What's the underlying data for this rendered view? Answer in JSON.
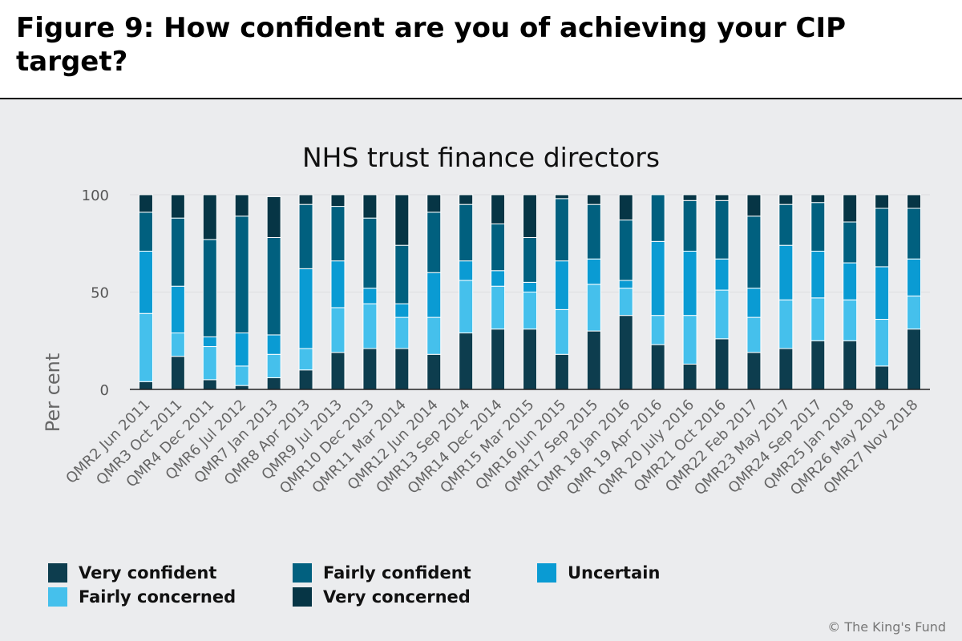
{
  "figure_title": "Figure 9: How confident are you of achieving your CIP target?",
  "credit": "© The King's Fund",
  "colors": {
    "very_confident": "#0d3d4e",
    "fairly_confident": "#01607f",
    "uncertain": "#0a9bd3",
    "fairly_concerned": "#45c0ec",
    "very_concerned": "#063545",
    "panel_bg": "#ebecee"
  },
  "chart_data": {
    "type": "bar",
    "stacked": true,
    "title": "NHS trust finance directors",
    "xlabel": "",
    "ylabel": "Per cent",
    "ylim": [
      0,
      100
    ],
    "yticks": [
      0,
      50,
      100
    ],
    "grid": true,
    "legend_position": "bottom",
    "categories": [
      "QMR2 Jun 2011",
      "QMR3 Oct 2011",
      "QMR4 Dec 2011",
      "QMR6 Jul 2012",
      "QMR7 Jan 2013",
      "QMR8 Apr 2013",
      "QMR9 Jul 2013",
      "QMR10 Dec 2013",
      "QMR11 Mar 2014",
      "QMR12 Jun 2014",
      "QMR13 Sep 2014",
      "QMR14 Dec 2014",
      "QMR15 Mar 2015",
      "QMR16 Jun 2015",
      "QMR17 Sep 2015",
      "QMR 18 Jan 2016",
      "QMR 19 Apr 2016",
      "QMR 20 July 2016",
      "QMR21 Oct 2016",
      "QMR22 Feb 2017",
      "QMR23 May 2017",
      "QMR24 Sep 2017",
      "QMR25 Jan 2018",
      "QMR26 May 2018",
      "QMR27 Nov 2018"
    ],
    "series": [
      {
        "name": "Very confident",
        "color": "#0d3d4e",
        "values": [
          4,
          17,
          5,
          2,
          6,
          10,
          19,
          21,
          21,
          18,
          29,
          31,
          31,
          18,
          30,
          38,
          23,
          13,
          26,
          19,
          21,
          25,
          25,
          12,
          31
        ]
      },
      {
        "name": "Fairly concerned",
        "color": "#45c0ec",
        "values": [
          35,
          12,
          17,
          10,
          12,
          11,
          23,
          23,
          16,
          19,
          27,
          22,
          19,
          23,
          24,
          14,
          15,
          25,
          25,
          18,
          25,
          22,
          21,
          24,
          17
        ]
      },
      {
        "name": "Uncertain",
        "color": "#0a9bd3",
        "values": [
          32,
          24,
          5,
          17,
          10,
          41,
          24,
          8,
          7,
          23,
          10,
          8,
          5,
          25,
          13,
          4,
          38,
          33,
          16,
          15,
          28,
          24,
          19,
          27,
          19
        ]
      },
      {
        "name": "Fairly confident",
        "color": "#01607f",
        "values": [
          20,
          35,
          50,
          60,
          50,
          33,
          28,
          36,
          30,
          31,
          29,
          24,
          23,
          32,
          28,
          31,
          24,
          26,
          30,
          37,
          21,
          25,
          21,
          30,
          26
        ]
      },
      {
        "name": "Very concerned",
        "color": "#063545",
        "values": [
          9,
          12,
          23,
          11,
          21,
          5,
          6,
          12,
          26,
          9,
          5,
          15,
          22,
          2,
          5,
          13,
          0,
          3,
          3,
          11,
          5,
          4,
          14,
          7,
          7
        ]
      }
    ],
    "legend": [
      {
        "label": "Very confident",
        "color": "#0d3d4e"
      },
      {
        "label": "Fairly confident",
        "color": "#01607f"
      },
      {
        "label": "Uncertain",
        "color": "#0a9bd3"
      },
      {
        "label": "Fairly concerned",
        "color": "#45c0ec"
      },
      {
        "label": "Very concerned",
        "color": "#063545"
      }
    ]
  }
}
